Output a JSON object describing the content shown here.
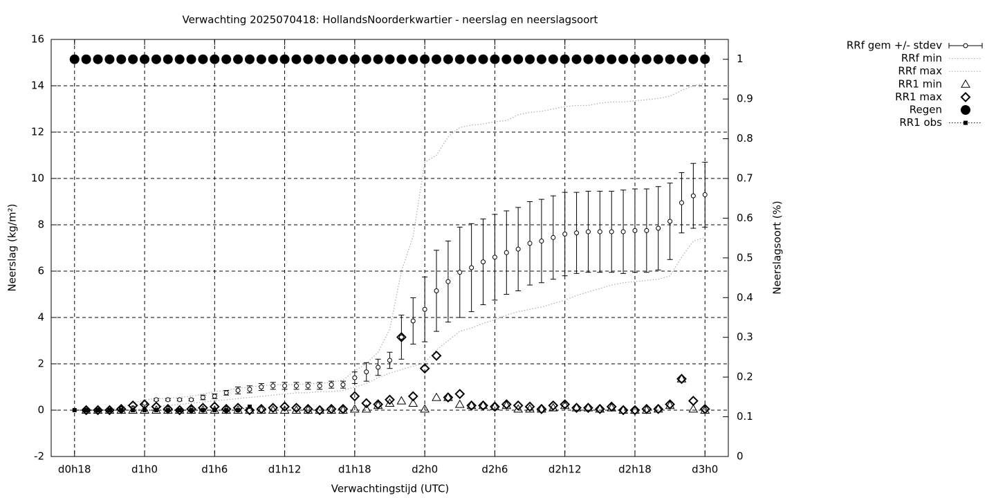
{
  "chart_data": {
    "type": "line",
    "title": "Verwachting 2025070418: HollandsNoorderkwartier - neerslag en neerslagsoort",
    "xlabel": "Verwachtingstijd (UTC)",
    "ylabel": "Neerslag (kg/m²)",
    "y2label": "Neerslagsoort (%)",
    "xlim": [
      -2,
      56
    ],
    "xticks": [
      {
        "value": 0,
        "label": "d0h18"
      },
      {
        "value": 6,
        "label": "d1h0"
      },
      {
        "value": 12,
        "label": "d1h6"
      },
      {
        "value": 18,
        "label": "d1h12"
      },
      {
        "value": 24,
        "label": "d1h18"
      },
      {
        "value": 30,
        "label": "d2h0"
      },
      {
        "value": 36,
        "label": "d2h6"
      },
      {
        "value": 42,
        "label": "d2h12"
      },
      {
        "value": 48,
        "label": "d2h18"
      },
      {
        "value": 54,
        "label": "d3h0"
      }
    ],
    "ylim": [
      -2,
      16
    ],
    "yticks": [
      -2,
      0,
      2,
      4,
      6,
      8,
      10,
      12,
      14,
      16
    ],
    "y2lim": [
      0,
      1.05
    ],
    "y2ticks": [
      0,
      0.1,
      0.2,
      0.3,
      0.4,
      0.5,
      0.6,
      0.7,
      0.8,
      0.9,
      1
    ],
    "grid": true,
    "legend": "top right",
    "x": [
      1,
      2,
      3,
      4,
      5,
      6,
      7,
      8,
      9,
      10,
      11,
      12,
      13,
      14,
      15,
      16,
      17,
      18,
      19,
      20,
      21,
      22,
      23,
      24,
      25,
      26,
      27,
      28,
      29,
      30,
      31,
      32,
      33,
      34,
      35,
      36,
      37,
      38,
      39,
      40,
      41,
      42,
      43,
      44,
      45,
      46,
      47,
      48,
      49,
      50,
      51,
      52,
      53,
      54
    ],
    "series": [
      {
        "name": "RRf gem +/- stdev",
        "style": "errorbar",
        "color": "#000000",
        "values": [
          0,
          0,
          0,
          0.05,
          0.1,
          0.3,
          0.45,
          0.45,
          0.45,
          0.45,
          0.55,
          0.6,
          0.75,
          0.85,
          0.9,
          1.0,
          1.05,
          1.05,
          1.05,
          1.05,
          1.05,
          1.1,
          1.1,
          1.4,
          1.65,
          1.85,
          2.15,
          3.15,
          3.85,
          4.35,
          5.15,
          5.55,
          5.95,
          6.15,
          6.4,
          6.6,
          6.8,
          6.95,
          7.2,
          7.3,
          7.45,
          7.6,
          7.65,
          7.7,
          7.7,
          7.7,
          7.7,
          7.75,
          7.75,
          7.85,
          8.15,
          8.95,
          9.25,
          9.3
        ],
        "errors": [
          0,
          0,
          0,
          0,
          0,
          0.05,
          0.05,
          0.05,
          0.05,
          0.05,
          0.1,
          0.1,
          0.1,
          0.15,
          0.15,
          0.15,
          0.15,
          0.15,
          0.15,
          0.15,
          0.15,
          0.15,
          0.15,
          0.25,
          0.4,
          0.35,
          0.35,
          0.95,
          1.0,
          1.4,
          1.75,
          1.75,
          1.95,
          1.9,
          1.85,
          1.85,
          1.8,
          1.8,
          1.8,
          1.8,
          1.8,
          1.8,
          1.75,
          1.75,
          1.75,
          1.75,
          1.8,
          1.8,
          1.8,
          1.8,
          1.65,
          1.3,
          1.4,
          1.4
        ]
      },
      {
        "name": "RRf min",
        "style": "dotted",
        "color": "#aaaaaa",
        "values": [
          0,
          0,
          0,
          0,
          0,
          0.1,
          0.15,
          0.2,
          0.25,
          0.3,
          0.35,
          0.4,
          0.45,
          0.5,
          0.55,
          0.6,
          0.65,
          0.7,
          0.75,
          0.75,
          0.8,
          0.8,
          0.85,
          1.0,
          1.15,
          1.4,
          1.6,
          1.75,
          1.9,
          2.05,
          2.6,
          3.0,
          3.4,
          3.55,
          3.75,
          3.9,
          4.1,
          4.25,
          4.35,
          4.45,
          4.6,
          4.75,
          4.95,
          5.1,
          5.25,
          5.4,
          5.5,
          5.55,
          5.6,
          5.65,
          5.8,
          6.6,
          7.3,
          7.45
        ]
      },
      {
        "name": "RRf max",
        "style": "dotted",
        "color": "#aaaaaa",
        "values": [
          0,
          0,
          0.05,
          0.1,
          0.3,
          0.45,
          0.5,
          0.5,
          0.55,
          0.6,
          0.7,
          0.8,
          0.85,
          0.95,
          1.0,
          1.05,
          1.1,
          1.1,
          1.1,
          1.15,
          1.15,
          1.2,
          1.3,
          1.7,
          2.0,
          2.5,
          3.5,
          6.0,
          7.5,
          10.7,
          11.0,
          11.8,
          12.2,
          12.3,
          12.35,
          12.45,
          12.5,
          12.75,
          12.85,
          12.9,
          13.0,
          13.1,
          13.15,
          13.15,
          13.25,
          13.3,
          13.3,
          13.35,
          13.4,
          13.45,
          13.55,
          13.8,
          14.0,
          14.1
        ]
      },
      {
        "name": "RR1 min",
        "style": "triangle",
        "color": "#000000",
        "values": [
          0,
          0,
          0,
          0,
          0,
          0,
          0,
          0,
          0,
          0,
          0,
          0,
          0,
          0,
          0,
          0,
          0,
          0,
          0,
          0,
          0,
          0,
          0,
          0.05,
          0.05,
          0.2,
          0.3,
          0.4,
          0.3,
          0.05,
          0.55,
          0.55,
          0.25,
          0.2,
          0.2,
          0.15,
          0.2,
          0.05,
          0.05,
          0.05,
          0.1,
          0.2,
          0.1,
          0.1,
          0.05,
          0.1,
          0,
          0,
          0,
          0.05,
          0.2,
          1.35,
          0.05,
          0
        ]
      },
      {
        "name": "RR1 max",
        "style": "diamond",
        "color": "#000000",
        "values": [
          0,
          0,
          0,
          0.05,
          0.2,
          0.25,
          0.15,
          0.05,
          0,
          0.05,
          0.1,
          0.15,
          0.05,
          0.1,
          0,
          0.05,
          0.1,
          0.15,
          0.1,
          0.05,
          0,
          0.05,
          0.05,
          0.6,
          0.3,
          0.25,
          0.45,
          3.15,
          0.6,
          1.8,
          2.35,
          0.55,
          0.7,
          0.2,
          0.2,
          0.15,
          0.25,
          0.2,
          0.15,
          0.05,
          0.2,
          0.25,
          0.1,
          0.1,
          0.05,
          0.15,
          0,
          0,
          0.05,
          0.05,
          0.25,
          1.35,
          0.4,
          0.05
        ]
      },
      {
        "name": "Regen",
        "style": "circle",
        "color": "#000000",
        "axis": "y2",
        "x": [
          0,
          1,
          2,
          3,
          4,
          5,
          6,
          7,
          8,
          9,
          10,
          11,
          12,
          13,
          14,
          15,
          16,
          17,
          18,
          19,
          20,
          21,
          22,
          23,
          24,
          25,
          26,
          27,
          28,
          29,
          30,
          31,
          32,
          33,
          34,
          35,
          36,
          37,
          38,
          39,
          40,
          41,
          42,
          43,
          44,
          45,
          46,
          47,
          48,
          49,
          50,
          51,
          52,
          53,
          54
        ],
        "values": [
          1,
          1,
          1,
          1,
          1,
          1,
          1,
          1,
          1,
          1,
          1,
          1,
          1,
          1,
          1,
          1,
          1,
          1,
          1,
          1,
          1,
          1,
          1,
          1,
          1,
          1,
          1,
          1,
          1,
          1,
          1,
          1,
          1,
          1,
          1,
          1,
          1,
          1,
          1,
          1,
          1,
          1,
          1,
          1,
          1,
          1,
          1,
          1,
          1,
          1,
          1,
          1,
          1,
          1,
          1
        ]
      },
      {
        "name": "RR1 obs",
        "style": "linepoints",
        "color": "#000000",
        "x": [
          0,
          1,
          2,
          3,
          4,
          5,
          6,
          7,
          8,
          9,
          10,
          11,
          12,
          13,
          14,
          15
        ],
        "values": [
          0,
          0,
          0,
          0,
          0,
          0,
          0,
          0,
          0,
          0,
          0,
          0,
          0,
          0,
          0,
          0.15
        ]
      }
    ]
  }
}
